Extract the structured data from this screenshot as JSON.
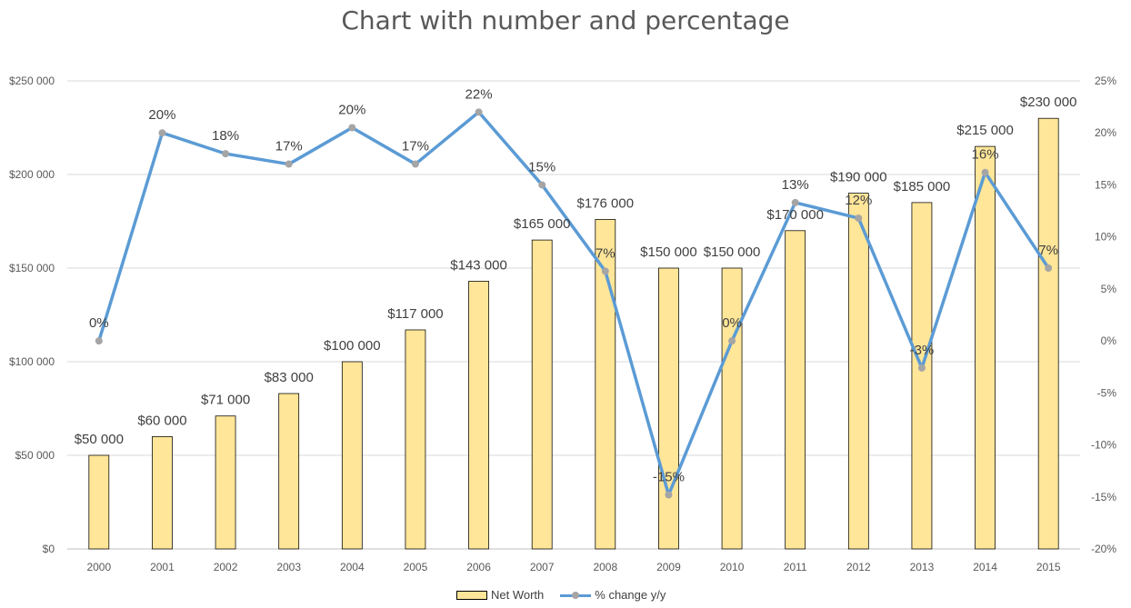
{
  "chart_data": {
    "type": "bar",
    "title": "Chart with number and percentage",
    "categories": [
      "2000",
      "2001",
      "2002",
      "2003",
      "2004",
      "2005",
      "2006",
      "2007",
      "2008",
      "2009",
      "2010",
      "2011",
      "2012",
      "2013",
      "2014",
      "2015"
    ],
    "series": [
      {
        "name": "Net Worth",
        "type": "bar",
        "axis": "left",
        "values": [
          50000,
          60000,
          71000,
          83000,
          100000,
          117000,
          143000,
          165000,
          176000,
          150000,
          150000,
          170000,
          190000,
          185000,
          215000,
          230000
        ],
        "labels": [
          "$50 000",
          "$60 000",
          "$71 000",
          "$83 000",
          "$100 000",
          "$117 000",
          "$143 000",
          "$165 000",
          "$176 000",
          "$150 000",
          "$150 000",
          "$170 000",
          "$190 000",
          "$185 000",
          "$215 000",
          "$230 000"
        ],
        "color": "#FFE699"
      },
      {
        "name": "% change y/y",
        "type": "line",
        "axis": "right",
        "values": [
          0,
          20,
          18,
          17,
          20.5,
          17,
          22,
          15,
          6.7,
          -14.8,
          0,
          13.3,
          11.8,
          -2.6,
          16.2,
          7
        ],
        "labels": [
          "0%",
          "20%",
          "18%",
          "17%",
          "20%",
          "17%",
          "22%",
          "15%",
          "7%",
          "-15%",
          "0%",
          "13%",
          "12%",
          "-3%",
          "16%",
          "7%"
        ],
        "color": "#5B9BD5",
        "marker_color": "#A5A5A5"
      }
    ],
    "ylim": [
      0,
      250000
    ],
    "y2lim": [
      -20,
      25
    ],
    "yticks": [
      "$0",
      "$50 000",
      "$100 000",
      "$150 000",
      "$200 000",
      "$250 000"
    ],
    "y2ticks": [
      "-20%",
      "-15%",
      "-10%",
      "-5%",
      "0%",
      "5%",
      "10%",
      "15%",
      "20%",
      "25%"
    ],
    "grid": true,
    "legend_position": "bottom"
  }
}
